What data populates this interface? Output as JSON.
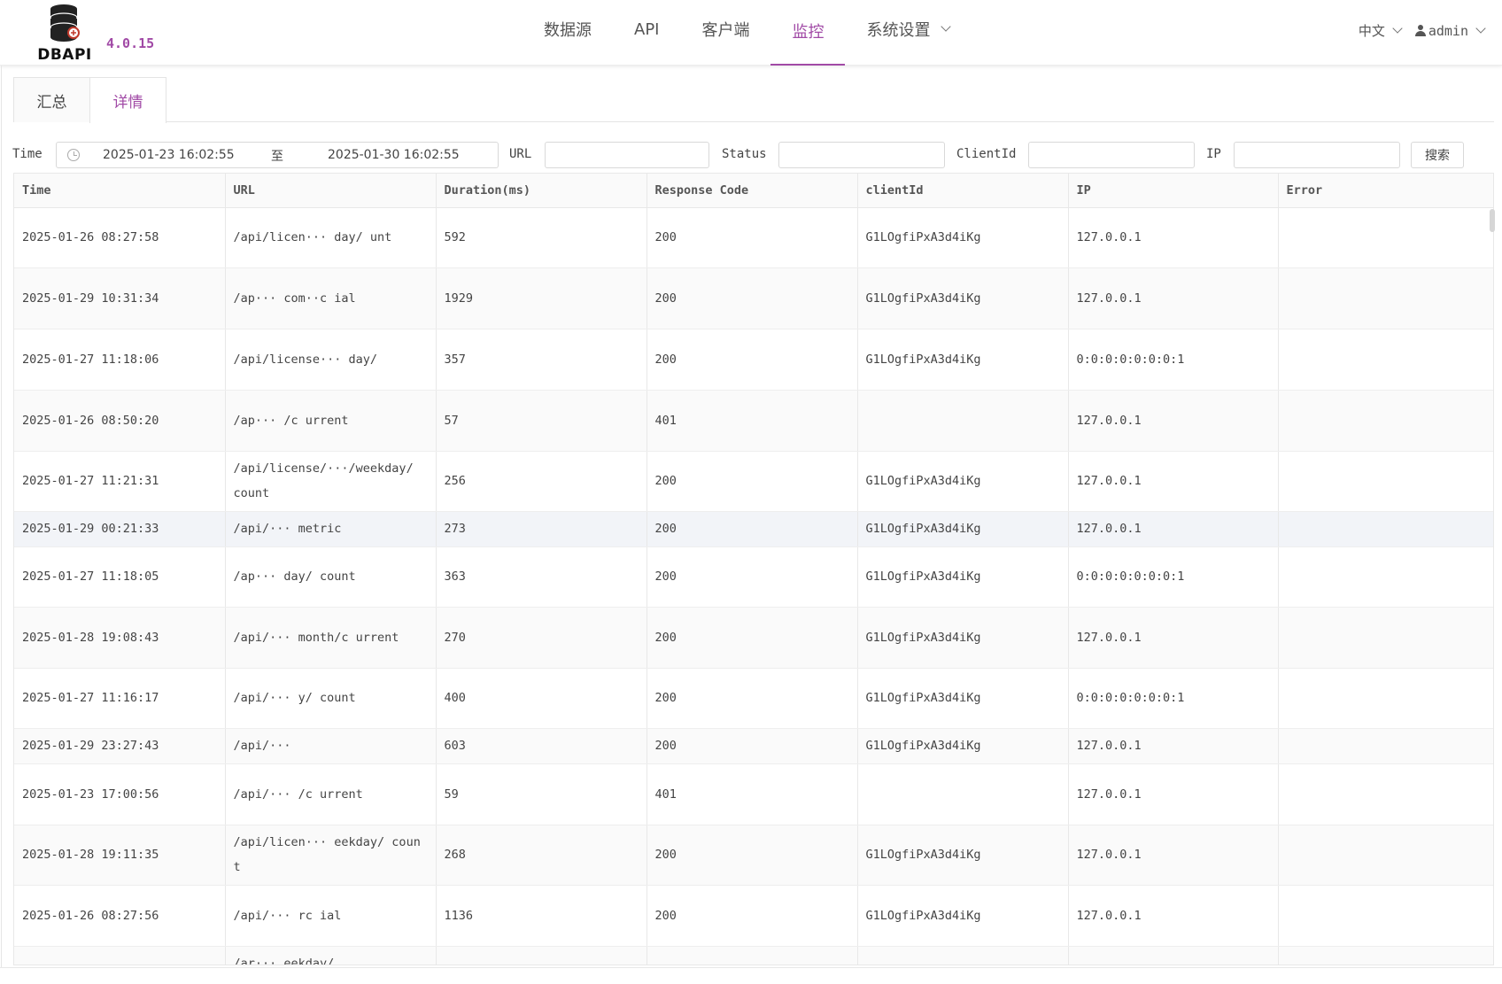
{
  "brand": {
    "logo_text": "DBAPI",
    "version": "4.0.15"
  },
  "nav": [
    {
      "label": "数据源",
      "active": false
    },
    {
      "label": "API",
      "active": false
    },
    {
      "label": "客户端",
      "active": false
    },
    {
      "label": "监控",
      "active": true
    },
    {
      "label": "系统设置",
      "active": false,
      "has_dropdown": true
    }
  ],
  "header_right": {
    "language": "中文",
    "user": "admin"
  },
  "tabs": [
    {
      "label": "汇总",
      "active": false
    },
    {
      "label": "详情",
      "active": true
    }
  ],
  "filters": {
    "time_label": "Time",
    "date_start": "2025-01-23 16:02:55",
    "date_separator": "至",
    "date_end": "2025-01-30 16:02:55",
    "url_label": "URL",
    "url_value": "",
    "status_label": "Status",
    "status_value": "",
    "clientid_label": "ClientId",
    "clientid_value": "",
    "ip_label": "IP",
    "ip_value": "",
    "search_button": "搜索"
  },
  "table": {
    "columns": [
      "Time",
      "URL",
      "Duration(ms)",
      "Response Code",
      "clientId",
      "IP",
      "Error"
    ],
    "rows": [
      {
        "time": "2025-01-26 08:27:58",
        "url": "/api/licen··· day/ unt",
        "duration": "592",
        "code": "200",
        "client": "G1LOgfiPxA3d4iKg",
        "ip": "127.0.0.1",
        "error": ""
      },
      {
        "time": "2025-01-29 10:31:34",
        "url": "/ap··· com··c ial",
        "duration": "1929",
        "code": "200",
        "client": "G1LOgfiPxA3d4iKg",
        "ip": "127.0.0.1",
        "error": ""
      },
      {
        "time": "2025-01-27 11:18:06",
        "url": "/api/license··· day/",
        "duration": "357",
        "code": "200",
        "client": "G1LOgfiPxA3d4iKg",
        "ip": "0:0:0:0:0:0:0:1",
        "error": ""
      },
      {
        "time": "2025-01-26 08:50:20",
        "url": "/ap··· /c urrent",
        "duration": "57",
        "code": "401",
        "client": "",
        "ip": "127.0.0.1",
        "error": ""
      },
      {
        "time": "2025-01-27 11:21:31",
        "url": "/api/license/···/weekday/ count",
        "duration": "256",
        "code": "200",
        "client": "G1LOgfiPxA3d4iKg",
        "ip": "127.0.0.1",
        "error": ""
      },
      {
        "time": "2025-01-29 00:21:33",
        "url": "/api/··· metric",
        "duration": "273",
        "code": "200",
        "client": "G1LOgfiPxA3d4iKg",
        "ip": "127.0.0.1",
        "error": ""
      },
      {
        "time": "2025-01-27 11:18:05",
        "url": "/ap··· day/ count",
        "duration": "363",
        "code": "200",
        "client": "G1LOgfiPxA3d4iKg",
        "ip": "0:0:0:0:0:0:0:1",
        "error": ""
      },
      {
        "time": "2025-01-28 19:08:43",
        "url": "/api/··· month/c urrent",
        "duration": "270",
        "code": "200",
        "client": "G1LOgfiPxA3d4iKg",
        "ip": "127.0.0.1",
        "error": ""
      },
      {
        "time": "2025-01-27 11:16:17",
        "url": "/api/··· y/ count",
        "duration": "400",
        "code": "200",
        "client": "G1LOgfiPxA3d4iKg",
        "ip": "0:0:0:0:0:0:0:1",
        "error": ""
      },
      {
        "time": "2025-01-29 23:27:43",
        "url": "/api/···",
        "duration": "603",
        "code": "200",
        "client": "G1LOgfiPxA3d4iKg",
        "ip": "127.0.0.1",
        "error": ""
      },
      {
        "time": "2025-01-23 17:00:56",
        "url": "/api/··· /c urrent",
        "duration": "59",
        "code": "401",
        "client": "",
        "ip": "127.0.0.1",
        "error": ""
      },
      {
        "time": "2025-01-28 19:11:35",
        "url": "/api/licen··· eekday/ count",
        "duration": "268",
        "code": "200",
        "client": "G1LOgfiPxA3d4iKg",
        "ip": "127.0.0.1",
        "error": ""
      },
      {
        "time": "2025-01-26 08:27:56",
        "url": "/api/··· rc ial",
        "duration": "1136",
        "code": "200",
        "client": "G1LOgfiPxA3d4iKg",
        "ip": "127.0.0.1",
        "error": ""
      },
      {
        "time": "",
        "url": "/ar··· eekday/",
        "duration": "",
        "code": "",
        "client": "",
        "ip": "",
        "error": ""
      }
    ]
  },
  "colors": {
    "accent": "#a14aa6",
    "border": "#e8e8e8"
  }
}
